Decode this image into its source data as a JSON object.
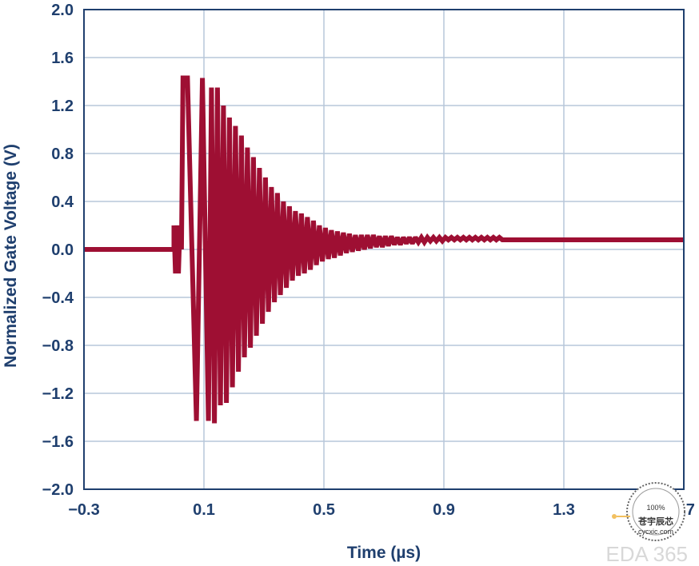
{
  "chart_data": {
    "type": "line",
    "title": "",
    "xlabel": "Time (µs)",
    "ylabel": "Normalized Gate Voltage (V)",
    "xlim": [
      -0.3,
      1.7
    ],
    "ylim": [
      -2.0,
      2.0
    ],
    "xticks": [
      -0.3,
      0.1,
      0.5,
      0.9,
      1.3,
      1.7
    ],
    "yticks": [
      2.0,
      1.6,
      1.2,
      0.8,
      0.4,
      0.0,
      -0.4,
      -0.8,
      -1.2,
      -1.6,
      -2.0
    ],
    "xtick_labels": [
      "−0.3",
      "0.1",
      "0.5",
      "0.9",
      "1.3",
      "1.7"
    ],
    "ytick_labels": [
      "2.0",
      "1.6",
      "1.2",
      "0.8",
      "0.4",
      "0.0",
      "−0.4",
      "−0.8",
      "−1.2",
      "−1.6",
      "−2.0"
    ],
    "grid": true,
    "colors": {
      "line": "#9e0f33",
      "grid": "#b7c7da",
      "frame": "#1f3f6e",
      "text": "#1f3f6e"
    },
    "series": [
      {
        "x": [
          -0.3,
          0.0,
          0.0,
          0.005,
          0.01,
          0.015,
          0.02,
          0.025,
          0.03,
          0.035,
          0.045,
          0.075,
          0.095,
          0.115,
          0.125,
          0.135,
          0.145,
          0.155,
          0.165,
          0.175,
          0.185,
          0.195,
          0.205,
          0.215,
          0.225,
          0.235,
          0.245,
          0.255,
          0.265,
          0.275,
          0.285,
          0.295,
          0.305,
          0.315,
          0.325,
          0.335,
          0.345,
          0.355,
          0.365,
          0.375,
          0.385,
          0.395,
          0.405,
          0.415,
          0.425,
          0.435,
          0.445,
          0.455,
          0.465,
          0.475,
          0.485,
          0.495,
          0.505,
          0.515,
          0.525,
          0.535,
          0.545,
          0.555,
          0.565,
          0.575,
          0.585,
          0.595,
          0.605,
          0.615,
          0.625,
          0.635,
          0.645,
          0.655,
          0.665,
          0.675,
          0.685,
          0.695,
          0.705,
          0.715,
          0.725,
          0.735,
          0.745,
          0.755,
          0.765,
          0.775,
          0.785,
          0.795,
          0.805,
          0.815,
          0.825,
          0.835,
          0.845,
          0.855,
          0.865,
          0.875,
          0.885,
          0.895,
          0.905,
          0.915,
          0.925,
          0.935,
          0.945,
          0.955,
          0.965,
          0.975,
          0.985,
          0.995,
          1.005,
          1.015,
          1.025,
          1.035,
          1.045,
          1.055,
          1.065,
          1.075,
          1.085,
          1.095,
          1.1,
          1.7
        ],
        "y": [
          0.0,
          0.0,
          0.2,
          -0.2,
          0.2,
          -0.2,
          0.2,
          0.0,
          1.43,
          1.43,
          1.43,
          -1.43,
          1.43,
          -1.43,
          1.35,
          -1.45,
          1.35,
          -1.3,
          1.2,
          -1.28,
          1.1,
          -1.15,
          1.03,
          -1.02,
          0.95,
          -0.9,
          0.85,
          -0.82,
          0.77,
          -0.72,
          0.68,
          -0.62,
          0.6,
          -0.52,
          0.52,
          -0.44,
          0.47,
          -0.38,
          0.4,
          -0.32,
          0.36,
          -0.26,
          0.32,
          -0.22,
          0.3,
          -0.2,
          0.27,
          -0.17,
          0.24,
          -0.13,
          0.2,
          -0.1,
          0.18,
          -0.08,
          0.16,
          -0.07,
          0.15,
          -0.05,
          0.14,
          -0.03,
          0.13,
          -0.02,
          0.12,
          -0.01,
          0.12,
          0.0,
          0.12,
          0.01,
          0.12,
          0.02,
          0.11,
          0.02,
          0.11,
          0.03,
          0.11,
          0.04,
          0.1,
          0.04,
          0.1,
          0.05,
          0.1,
          0.05,
          0.1,
          0.06,
          0.1,
          0.06,
          0.1,
          0.07,
          0.1,
          0.07,
          0.1,
          0.07,
          0.1,
          0.08,
          0.1,
          0.08,
          0.1,
          0.08,
          0.1,
          0.08,
          0.1,
          0.08,
          0.1,
          0.08,
          0.1,
          0.08,
          0.1,
          0.08,
          0.1,
          0.08,
          0.1,
          0.08,
          0.08,
          0.08
        ]
      }
    ]
  },
  "watermark": {
    "percent": "100%",
    "name": "苍宇辰芯",
    "site": "cycxic.com",
    "corner": "EDA 365"
  }
}
